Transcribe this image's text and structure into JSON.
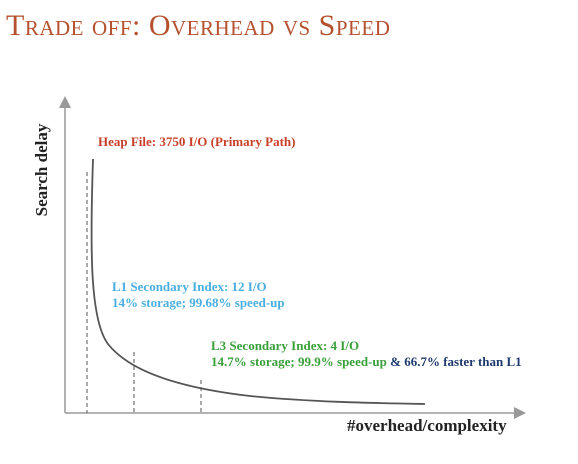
{
  "slide": {
    "title": "Trade off: Overhead vs Speed"
  },
  "axes": {
    "ylabel": "Search delay",
    "xlabel": "#overhead/complexity"
  },
  "annotations": {
    "heap": {
      "text": "Heap File: 3750 I/O (Primary Path)",
      "color": "#c8402a"
    },
    "l1": {
      "line1": "L1 Secondary Index: 12 I/O",
      "line2": "14% storage; 99.68% speed-up",
      "color": "#4aaee0"
    },
    "l3": {
      "line1": "L3 Secondary Index: 4 I/O",
      "line2": "14.7% storage; 99.9% speed-up",
      "line2_extra": " & 66.7% faster than L1",
      "color": "#3aa03a",
      "extra_color": "#1f3a6e"
    }
  },
  "colors": {
    "curve": "#555555",
    "axis": "#999999",
    "guides": "#555555"
  }
}
